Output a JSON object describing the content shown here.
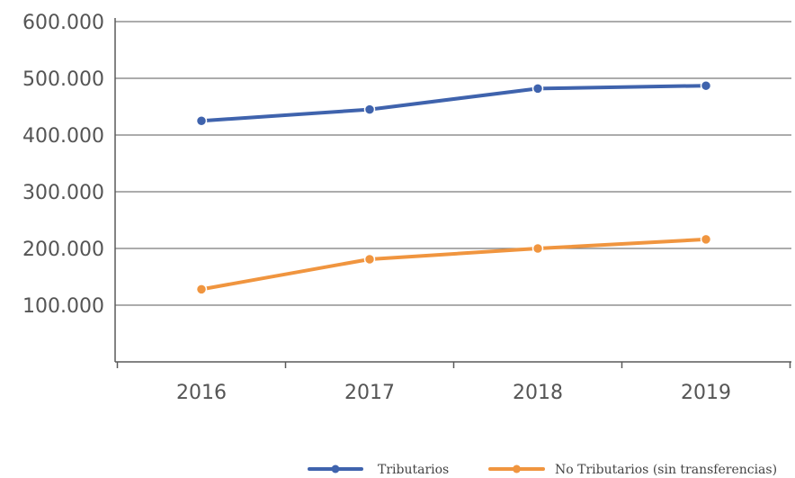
{
  "chart_data": {
    "type": "line",
    "title": "",
    "xlabel": "",
    "ylabel": "",
    "categories": [
      "2016",
      "2017",
      "2018",
      "2019"
    ],
    "ylim": [
      0,
      600000
    ],
    "yticks": [
      0,
      100000,
      200000,
      300000,
      400000,
      500000,
      600000
    ],
    "ytick_labels": [
      "",
      "100.000",
      "200.000",
      "300.000",
      "400.000",
      "500.000",
      "600.000"
    ],
    "grid": true,
    "legend_position": "bottom-right",
    "series": [
      {
        "name": "Tributarios",
        "color": "#3f63ad",
        "values": [
          425000,
          445000,
          482000,
          487000
        ]
      },
      {
        "name": "No Tributarios (sin transferencias)",
        "color": "#f0953f",
        "values": [
          128000,
          181000,
          200000,
          216000
        ]
      }
    ]
  }
}
